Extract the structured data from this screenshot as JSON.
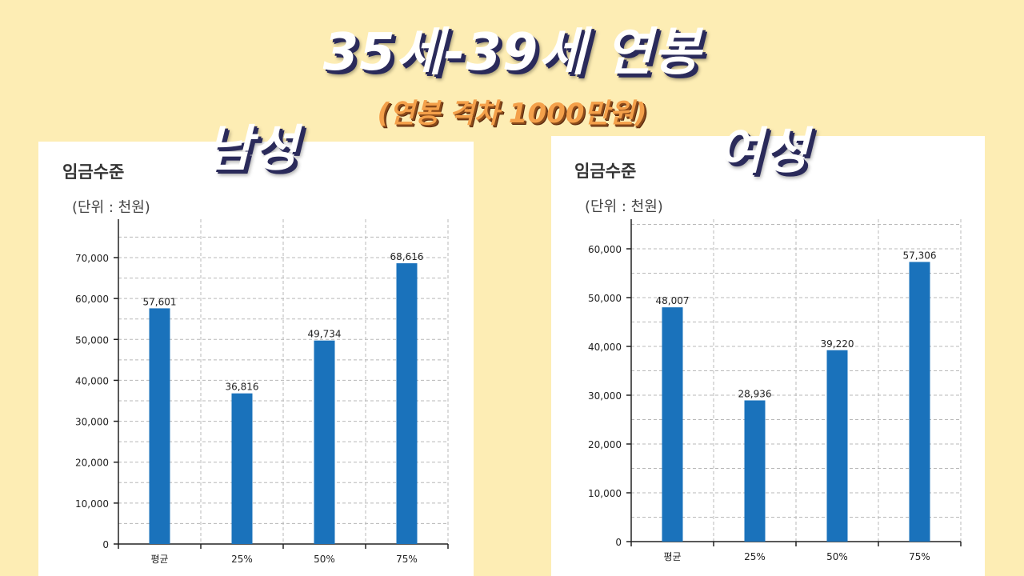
{
  "title": "35세-39세 연봉",
  "subtitle": "(연봉 격차 1000만원)",
  "panels": [
    {
      "gender_label": "남성",
      "chart_title": "임금수준",
      "unit": "(단위 : 천원)"
    },
    {
      "gender_label": "여성",
      "chart_title": "임금수준",
      "unit": "(단위 : 천원)"
    }
  ],
  "colors": {
    "bar": "#1a72bb",
    "background": "#fdedb4",
    "panel": "#ffffff"
  },
  "chart_data": [
    {
      "type": "bar",
      "title": "임금수준",
      "unit": "(단위 : 천원)",
      "categories": [
        "평균",
        "25%",
        "50%",
        "75%"
      ],
      "values": [
        57601,
        36816,
        49734,
        68616
      ],
      "value_labels": [
        "57,601",
        "36,816",
        "49,734",
        "68,616"
      ],
      "ylim": [
        0,
        70000
      ],
      "yticks": [
        0,
        10000,
        20000,
        30000,
        40000,
        50000,
        60000,
        70000
      ],
      "ytick_labels": [
        "0",
        "10,000",
        "20,000",
        "30,000",
        "40,000",
        "50,000",
        "60,000",
        "70,000"
      ],
      "grid": true
    },
    {
      "type": "bar",
      "title": "임금수준",
      "unit": "(단위 : 천원)",
      "categories": [
        "평균",
        "25%",
        "50%",
        "75%"
      ],
      "values": [
        48007,
        28936,
        39220,
        57306
      ],
      "value_labels": [
        "48,007",
        "28,936",
        "39,220",
        "57,306"
      ],
      "ylim": [
        0,
        60000
      ],
      "yticks": [
        0,
        10000,
        20000,
        30000,
        40000,
        50000,
        60000
      ],
      "ytick_labels": [
        "0",
        "10,000",
        "20,000",
        "30,000",
        "40,000",
        "50,000",
        "60,000"
      ],
      "grid": true
    }
  ]
}
